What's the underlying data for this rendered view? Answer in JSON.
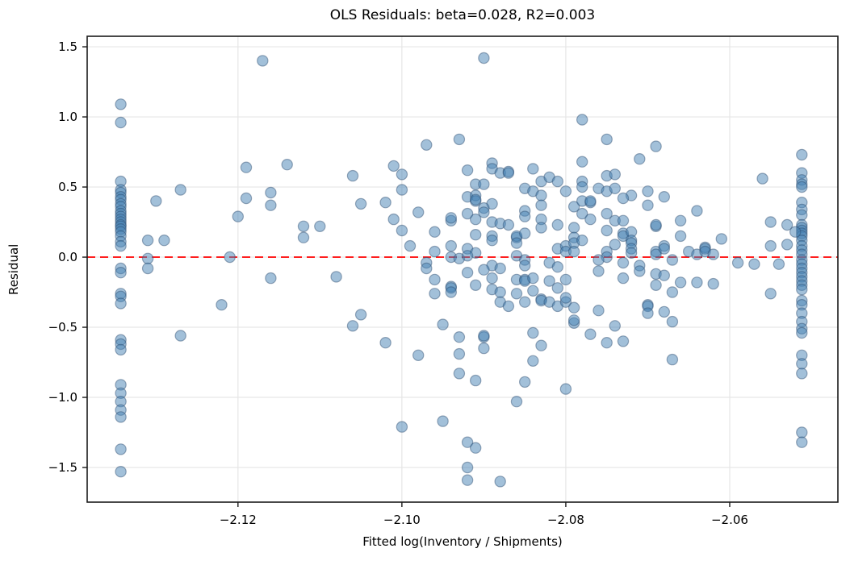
{
  "figure": {
    "title": "OLS Residuals: beta=0.028, R2=0.003",
    "xlabel": "Fitted log(Inventory / Shipments)",
    "ylabel": "Residual"
  },
  "chart_data": {
    "type": "scatter",
    "title": "OLS Residuals: beta=0.028, R2=0.003",
    "xlabel": "Fitted log(Inventory / Shipments)",
    "ylabel": "Residual",
    "xlim": [
      -2.1384,
      -2.0468
    ],
    "ylim": [
      -1.747,
      1.575
    ],
    "xticks": [
      -2.12,
      -2.1,
      -2.08,
      -2.06
    ],
    "xtick_labels": [
      "−2.12",
      "−2.10",
      "−2.08",
      "−2.06"
    ],
    "yticks": [
      1.5,
      1.0,
      0.5,
      0.0,
      -0.5,
      -1.0,
      -1.5
    ],
    "ytick_labels": [
      "1.5",
      "1.0",
      "0.5",
      "0.0",
      "−0.5",
      "−1.0",
      "−1.5"
    ],
    "grid": true,
    "grid_color": "#e6e6e6",
    "spine_color": "#1a1a1a",
    "legend": false,
    "zero_line": {
      "y": 0.0,
      "color": "#ff0000",
      "style": "dashed",
      "width": 1.8
    },
    "marker": {
      "radius_px": 6.6,
      "fill": "rgba(70,130,180,0.5)",
      "edge": "rgba(45,75,110,0.45)",
      "edge_width": 1.2
    },
    "points": [
      [
        -2.1343,
        1.09
      ],
      [
        -2.1343,
        0.96
      ],
      [
        -2.1343,
        0.54
      ],
      [
        -2.1343,
        0.48
      ],
      [
        -2.1343,
        0.46
      ],
      [
        -2.1343,
        0.43
      ],
      [
        -2.1343,
        0.41
      ],
      [
        -2.1343,
        0.38
      ],
      [
        -2.1343,
        0.36
      ],
      [
        -2.1343,
        0.33
      ],
      [
        -2.1343,
        0.31
      ],
      [
        -2.1343,
        0.29
      ],
      [
        -2.1343,
        0.27
      ],
      [
        -2.1343,
        0.25
      ],
      [
        -2.1343,
        0.23
      ],
      [
        -2.1343,
        0.22
      ],
      [
        -2.1343,
        0.2
      ],
      [
        -2.1343,
        0.18
      ],
      [
        -2.1343,
        0.15
      ],
      [
        -2.1343,
        0.11
      ],
      [
        -2.1343,
        0.08
      ],
      [
        -2.1343,
        -0.08
      ],
      [
        -2.1343,
        -0.11
      ],
      [
        -2.1343,
        -0.26
      ],
      [
        -2.1343,
        -0.28
      ],
      [
        -2.1343,
        -0.33
      ],
      [
        -2.1343,
        -0.59
      ],
      [
        -2.1343,
        -0.62
      ],
      [
        -2.1343,
        -0.66
      ],
      [
        -2.1343,
        -0.91
      ],
      [
        -2.1343,
        -0.97
      ],
      [
        -2.1343,
        -1.03
      ],
      [
        -2.1343,
        -1.09
      ],
      [
        -2.1343,
        -1.14
      ],
      [
        -2.1343,
        -1.37
      ],
      [
        -2.1343,
        -1.53
      ],
      [
        -2.0512,
        0.73
      ],
      [
        -2.0512,
        0.6
      ],
      [
        -2.0512,
        0.55
      ],
      [
        -2.0512,
        0.52
      ],
      [
        -2.0512,
        0.5
      ],
      [
        -2.0512,
        0.39
      ],
      [
        -2.0512,
        0.34
      ],
      [
        -2.0512,
        0.3
      ],
      [
        -2.0512,
        0.23
      ],
      [
        -2.0512,
        0.21
      ],
      [
        -2.0512,
        0.19
      ],
      [
        -2.0512,
        0.17
      ],
      [
        -2.0512,
        0.15
      ],
      [
        -2.0512,
        0.12
      ],
      [
        -2.0512,
        0.08
      ],
      [
        -2.0512,
        0.05
      ],
      [
        -2.0512,
        0.02
      ],
      [
        -2.0512,
        -0.02
      ],
      [
        -2.0512,
        -0.05
      ],
      [
        -2.0512,
        -0.08
      ],
      [
        -2.0512,
        -0.11
      ],
      [
        -2.0512,
        -0.14
      ],
      [
        -2.0512,
        -0.17
      ],
      [
        -2.0512,
        -0.2
      ],
      [
        -2.0512,
        -0.23
      ],
      [
        -2.0512,
        -0.31
      ],
      [
        -2.0512,
        -0.34
      ],
      [
        -2.0512,
        -0.4
      ],
      [
        -2.0512,
        -0.46
      ],
      [
        -2.0512,
        -0.51
      ],
      [
        -2.0512,
        -0.54
      ],
      [
        -2.0512,
        -0.7
      ],
      [
        -2.0512,
        -0.76
      ],
      [
        -2.0512,
        -0.83
      ],
      [
        -2.0512,
        -1.25
      ],
      [
        -2.0512,
        -1.32
      ],
      [
        -2.117,
        1.4
      ],
      [
        -2.119,
        0.64
      ],
      [
        -2.114,
        0.66
      ],
      [
        -2.127,
        0.48
      ],
      [
        -2.13,
        0.4
      ],
      [
        -2.119,
        0.42
      ],
      [
        -2.116,
        0.46
      ],
      [
        -2.116,
        0.37
      ],
      [
        -2.12,
        0.29
      ],
      [
        -2.112,
        0.22
      ],
      [
        -2.11,
        0.22
      ],
      [
        -2.112,
        0.14
      ],
      [
        -2.131,
        0.12
      ],
      [
        -2.129,
        0.12
      ],
      [
        -2.131,
        -0.01
      ],
      [
        -2.121,
        0.0
      ],
      [
        -2.131,
        -0.08
      ],
      [
        -2.116,
        -0.15
      ],
      [
        -2.122,
        -0.34
      ],
      [
        -2.127,
        -0.56
      ],
      [
        -2.108,
        -0.14
      ],
      [
        -2.09,
        1.42
      ],
      [
        -2.078,
        0.98
      ],
      [
        -2.093,
        0.84
      ],
      [
        -2.097,
        0.8
      ],
      [
        -2.101,
        0.65
      ],
      [
        -2.106,
        0.58
      ],
      [
        -2.1,
        0.59
      ],
      [
        -2.089,
        0.67
      ],
      [
        -2.089,
        0.63
      ],
      [
        -2.088,
        0.6
      ],
      [
        -2.087,
        0.61
      ],
      [
        -2.087,
        0.6
      ],
      [
        -2.092,
        0.62
      ],
      [
        -2.084,
        0.63
      ],
      [
        -2.083,
        0.54
      ],
      [
        -2.082,
        0.57
      ],
      [
        -2.081,
        0.54
      ],
      [
        -2.1,
        0.48
      ],
      [
        -2.091,
        0.52
      ],
      [
        -2.09,
        0.52
      ],
      [
        -2.085,
        0.49
      ],
      [
        -2.084,
        0.47
      ],
      [
        -2.083,
        0.44
      ],
      [
        -2.08,
        0.47
      ],
      [
        -2.078,
        0.68
      ],
      [
        -2.078,
        0.54
      ],
      [
        -2.092,
        0.43
      ],
      [
        -2.091,
        0.44
      ],
      [
        -2.091,
        0.4
      ],
      [
        -2.091,
        0.41
      ],
      [
        -2.105,
        0.38
      ],
      [
        -2.102,
        0.39
      ],
      [
        -2.089,
        0.38
      ],
      [
        -2.09,
        0.35
      ],
      [
        -2.083,
        0.37
      ],
      [
        -2.079,
        0.36
      ],
      [
        -2.078,
        0.4
      ],
      [
        -2.098,
        0.32
      ],
      [
        -2.101,
        0.27
      ],
      [
        -2.094,
        0.26
      ],
      [
        -2.094,
        0.28
      ],
      [
        -2.092,
        0.31
      ],
      [
        -2.091,
        0.27
      ],
      [
        -2.09,
        0.32
      ],
      [
        -2.085,
        0.33
      ],
      [
        -2.085,
        0.29
      ],
      [
        -2.089,
        0.25
      ],
      [
        -2.088,
        0.24
      ],
      [
        -2.087,
        0.23
      ],
      [
        -2.083,
        0.27
      ],
      [
        -2.083,
        0.21
      ],
      [
        -2.081,
        0.23
      ],
      [
        -2.079,
        0.21
      ],
      [
        -2.1,
        0.19
      ],
      [
        -2.096,
        0.18
      ],
      [
        -2.091,
        0.16
      ],
      [
        -2.089,
        0.15
      ],
      [
        -2.089,
        0.12
      ],
      [
        -2.086,
        0.14
      ],
      [
        -2.086,
        0.15
      ],
      [
        -2.086,
        0.1
      ],
      [
        -2.085,
        0.17
      ],
      [
        -2.079,
        0.14
      ],
      [
        -2.078,
        0.31
      ],
      [
        -2.099,
        0.08
      ],
      [
        -2.094,
        0.08
      ],
      [
        -2.092,
        0.06
      ],
      [
        -2.091,
        0.03
      ],
      [
        -2.096,
        0.04
      ],
      [
        -2.094,
        0.0
      ],
      [
        -2.093,
        -0.01
      ],
      [
        -2.092,
        0.01
      ],
      [
        -2.086,
        0.01
      ],
      [
        -2.085,
        -0.02
      ],
      [
        -2.081,
        0.06
      ],
      [
        -2.08,
        0.08
      ],
      [
        -2.08,
        0.04
      ],
      [
        -2.079,
        0.1
      ],
      [
        -2.079,
        0.04
      ],
      [
        -2.078,
        0.12
      ],
      [
        -2.097,
        -0.04
      ],
      [
        -2.097,
        -0.08
      ],
      [
        -2.089,
        -0.06
      ],
      [
        -2.088,
        -0.08
      ],
      [
        -2.085,
        -0.06
      ],
      [
        -2.082,
        -0.04
      ],
      [
        -2.081,
        -0.07
      ],
      [
        -2.075,
        0.84
      ],
      [
        -2.069,
        0.79
      ],
      [
        -2.071,
        0.7
      ],
      [
        -2.075,
        0.58
      ],
      [
        -2.074,
        0.59
      ],
      [
        -2.056,
        0.56
      ],
      [
        -2.078,
        0.5
      ],
      [
        -2.076,
        0.49
      ],
      [
        -2.075,
        0.47
      ],
      [
        -2.074,
        0.49
      ],
      [
        -2.072,
        0.44
      ],
      [
        -2.073,
        0.42
      ],
      [
        -2.07,
        0.47
      ],
      [
        -2.07,
        0.37
      ],
      [
        -2.068,
        0.43
      ],
      [
        -2.077,
        0.39
      ],
      [
        -2.077,
        0.4
      ],
      [
        -2.075,
        0.31
      ],
      [
        -2.064,
        0.33
      ],
      [
        -2.077,
        0.27
      ],
      [
        -2.074,
        0.26
      ],
      [
        -2.073,
        0.26
      ],
      [
        -2.075,
        0.19
      ],
      [
        -2.073,
        0.17
      ],
      [
        -2.073,
        0.15
      ],
      [
        -2.072,
        0.18
      ],
      [
        -2.069,
        0.22
      ],
      [
        -2.069,
        0.23
      ],
      [
        -2.066,
        0.26
      ],
      [
        -2.066,
        0.15
      ],
      [
        -2.055,
        0.25
      ],
      [
        -2.053,
        0.23
      ],
      [
        -2.052,
        0.18
      ],
      [
        -2.055,
        0.08
      ],
      [
        -2.053,
        0.09
      ],
      [
        -2.061,
        0.13
      ],
      [
        -2.074,
        0.09
      ],
      [
        -2.072,
        0.12
      ],
      [
        -2.072,
        0.1
      ],
      [
        -2.072,
        0.06
      ],
      [
        -2.072,
        0.03
      ],
      [
        -2.069,
        0.04
      ],
      [
        -2.069,
        0.02
      ],
      [
        -2.068,
        0.08
      ],
      [
        -2.068,
        0.06
      ],
      [
        -2.065,
        0.04
      ],
      [
        -2.064,
        0.02
      ],
      [
        -2.063,
        0.07
      ],
      [
        -2.063,
        0.06
      ],
      [
        -2.063,
        0.04
      ],
      [
        -2.062,
        0.02
      ],
      [
        -2.075,
        0.04
      ],
      [
        -2.075,
        0.0
      ],
      [
        -2.076,
        -0.02
      ],
      [
        -2.073,
        -0.04
      ],
      [
        -2.071,
        -0.06
      ],
      [
        -2.067,
        -0.02
      ],
      [
        -2.059,
        -0.04
      ],
      [
        -2.057,
        -0.05
      ],
      [
        -2.054,
        -0.05
      ],
      [
        -2.096,
        -0.16
      ],
      [
        -2.094,
        -0.21
      ],
      [
        -2.094,
        -0.22
      ],
      [
        -2.096,
        -0.26
      ],
      [
        -2.094,
        -0.25
      ],
      [
        -2.092,
        -0.11
      ],
      [
        -2.091,
        -0.2
      ],
      [
        -2.09,
        -0.09
      ],
      [
        -2.089,
        -0.23
      ],
      [
        -2.089,
        -0.15
      ],
      [
        -2.088,
        -0.32
      ],
      [
        -2.087,
        -0.35
      ],
      [
        -2.088,
        -0.25
      ],
      [
        -2.086,
        -0.26
      ],
      [
        -2.086,
        -0.16
      ],
      [
        -2.085,
        -0.32
      ],
      [
        -2.085,
        -0.16
      ],
      [
        -2.085,
        -0.17
      ],
      [
        -2.084,
        -0.15
      ],
      [
        -2.084,
        -0.24
      ],
      [
        -2.083,
        -0.3
      ],
      [
        -2.083,
        -0.31
      ],
      [
        -2.082,
        -0.32
      ],
      [
        -2.082,
        -0.17
      ],
      [
        -2.081,
        -0.35
      ],
      [
        -2.081,
        -0.22
      ],
      [
        -2.08,
        -0.32
      ],
      [
        -2.08,
        -0.29
      ],
      [
        -2.08,
        -0.16
      ],
      [
        -2.079,
        -0.36
      ],
      [
        -2.079,
        -0.47
      ],
      [
        -2.079,
        -0.45
      ],
      [
        -2.105,
        -0.41
      ],
      [
        -2.106,
        -0.49
      ],
      [
        -2.102,
        -0.61
      ],
      [
        -2.098,
        -0.7
      ],
      [
        -2.095,
        -0.48
      ],
      [
        -2.093,
        -0.57
      ],
      [
        -2.09,
        -0.57
      ],
      [
        -2.09,
        -0.56
      ],
      [
        -2.09,
        -0.65
      ],
      [
        -2.093,
        -0.69
      ],
      [
        -2.093,
        -0.83
      ],
      [
        -2.091,
        -0.88
      ],
      [
        -2.084,
        -0.54
      ],
      [
        -2.083,
        -0.63
      ],
      [
        -2.084,
        -0.74
      ],
      [
        -2.085,
        -0.89
      ],
      [
        -2.08,
        -0.94
      ],
      [
        -2.086,
        -1.03
      ],
      [
        -2.095,
        -1.17
      ],
      [
        -2.1,
        -1.21
      ],
      [
        -2.092,
        -1.32
      ],
      [
        -2.091,
        -1.36
      ],
      [
        -2.092,
        -1.5
      ],
      [
        -2.092,
        -1.59
      ],
      [
        -2.088,
        -1.6
      ],
      [
        -2.076,
        -0.1
      ],
      [
        -2.073,
        -0.15
      ],
      [
        -2.071,
        -0.1
      ],
      [
        -2.069,
        -0.12
      ],
      [
        -2.068,
        -0.13
      ],
      [
        -2.069,
        -0.2
      ],
      [
        -2.067,
        -0.25
      ],
      [
        -2.066,
        -0.18
      ],
      [
        -2.064,
        -0.18
      ],
      [
        -2.062,
        -0.19
      ],
      [
        -2.055,
        -0.26
      ],
      [
        -2.076,
        -0.38
      ],
      [
        -2.07,
        -0.34
      ],
      [
        -2.07,
        -0.35
      ],
      [
        -2.07,
        -0.4
      ],
      [
        -2.068,
        -0.39
      ],
      [
        -2.074,
        -0.49
      ],
      [
        -2.067,
        -0.46
      ],
      [
        -2.077,
        -0.55
      ],
      [
        -2.075,
        -0.61
      ],
      [
        -2.073,
        -0.6
      ],
      [
        -2.067,
        -0.73
      ]
    ]
  }
}
